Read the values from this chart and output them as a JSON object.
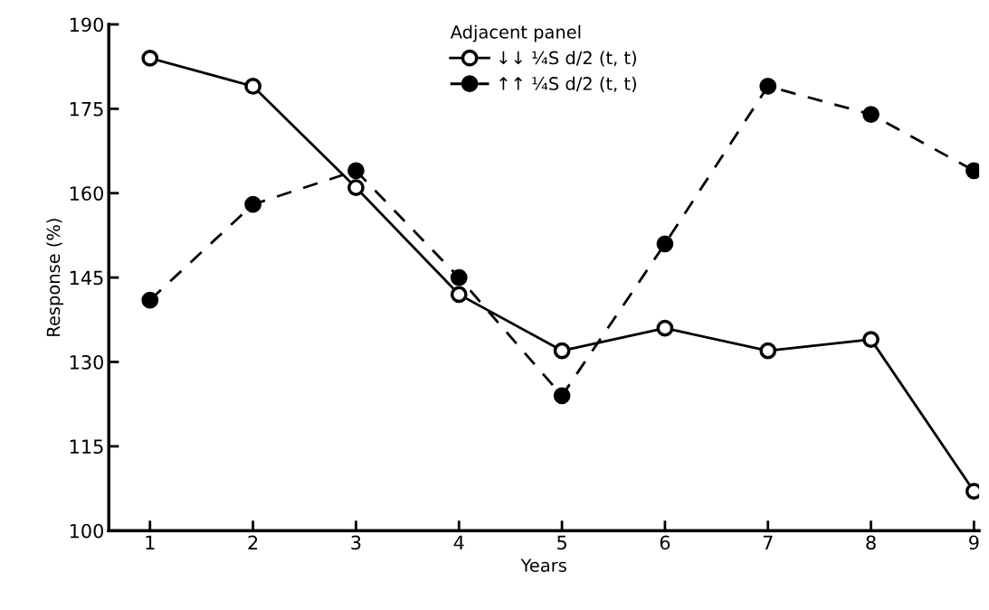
{
  "chart_data": {
    "type": "line",
    "xlabel": "Years",
    "ylabel": "Response (%)",
    "legend_title": "Adjacent panel",
    "x": [
      1,
      2,
      3,
      4,
      5,
      6,
      7,
      8,
      9
    ],
    "series": [
      {
        "name": "↓↓ ¼S d/2 (t, t)",
        "color": "#000000",
        "marker": "circle",
        "line_style": "solid",
        "values": [
          184,
          179,
          161,
          142,
          132,
          136,
          132,
          134,
          107
        ]
      },
      {
        "name": "↑↑ ¼S d/2 (t, t)",
        "color": "#000000",
        "marker": "circle",
        "line_style": "dashed",
        "values": [
          141,
          158,
          164,
          145,
          124,
          151,
          179,
          174,
          164
        ]
      }
    ],
    "xlim": [
      0.6,
      9.05
    ],
    "ylim": [
      100,
      190
    ],
    "xticks": [
      1,
      2,
      3,
      4,
      5,
      6,
      7,
      8,
      9
    ],
    "yticks": [
      100,
      115,
      130,
      145,
      160,
      175,
      190
    ],
    "grid": false,
    "legend": "top"
  }
}
